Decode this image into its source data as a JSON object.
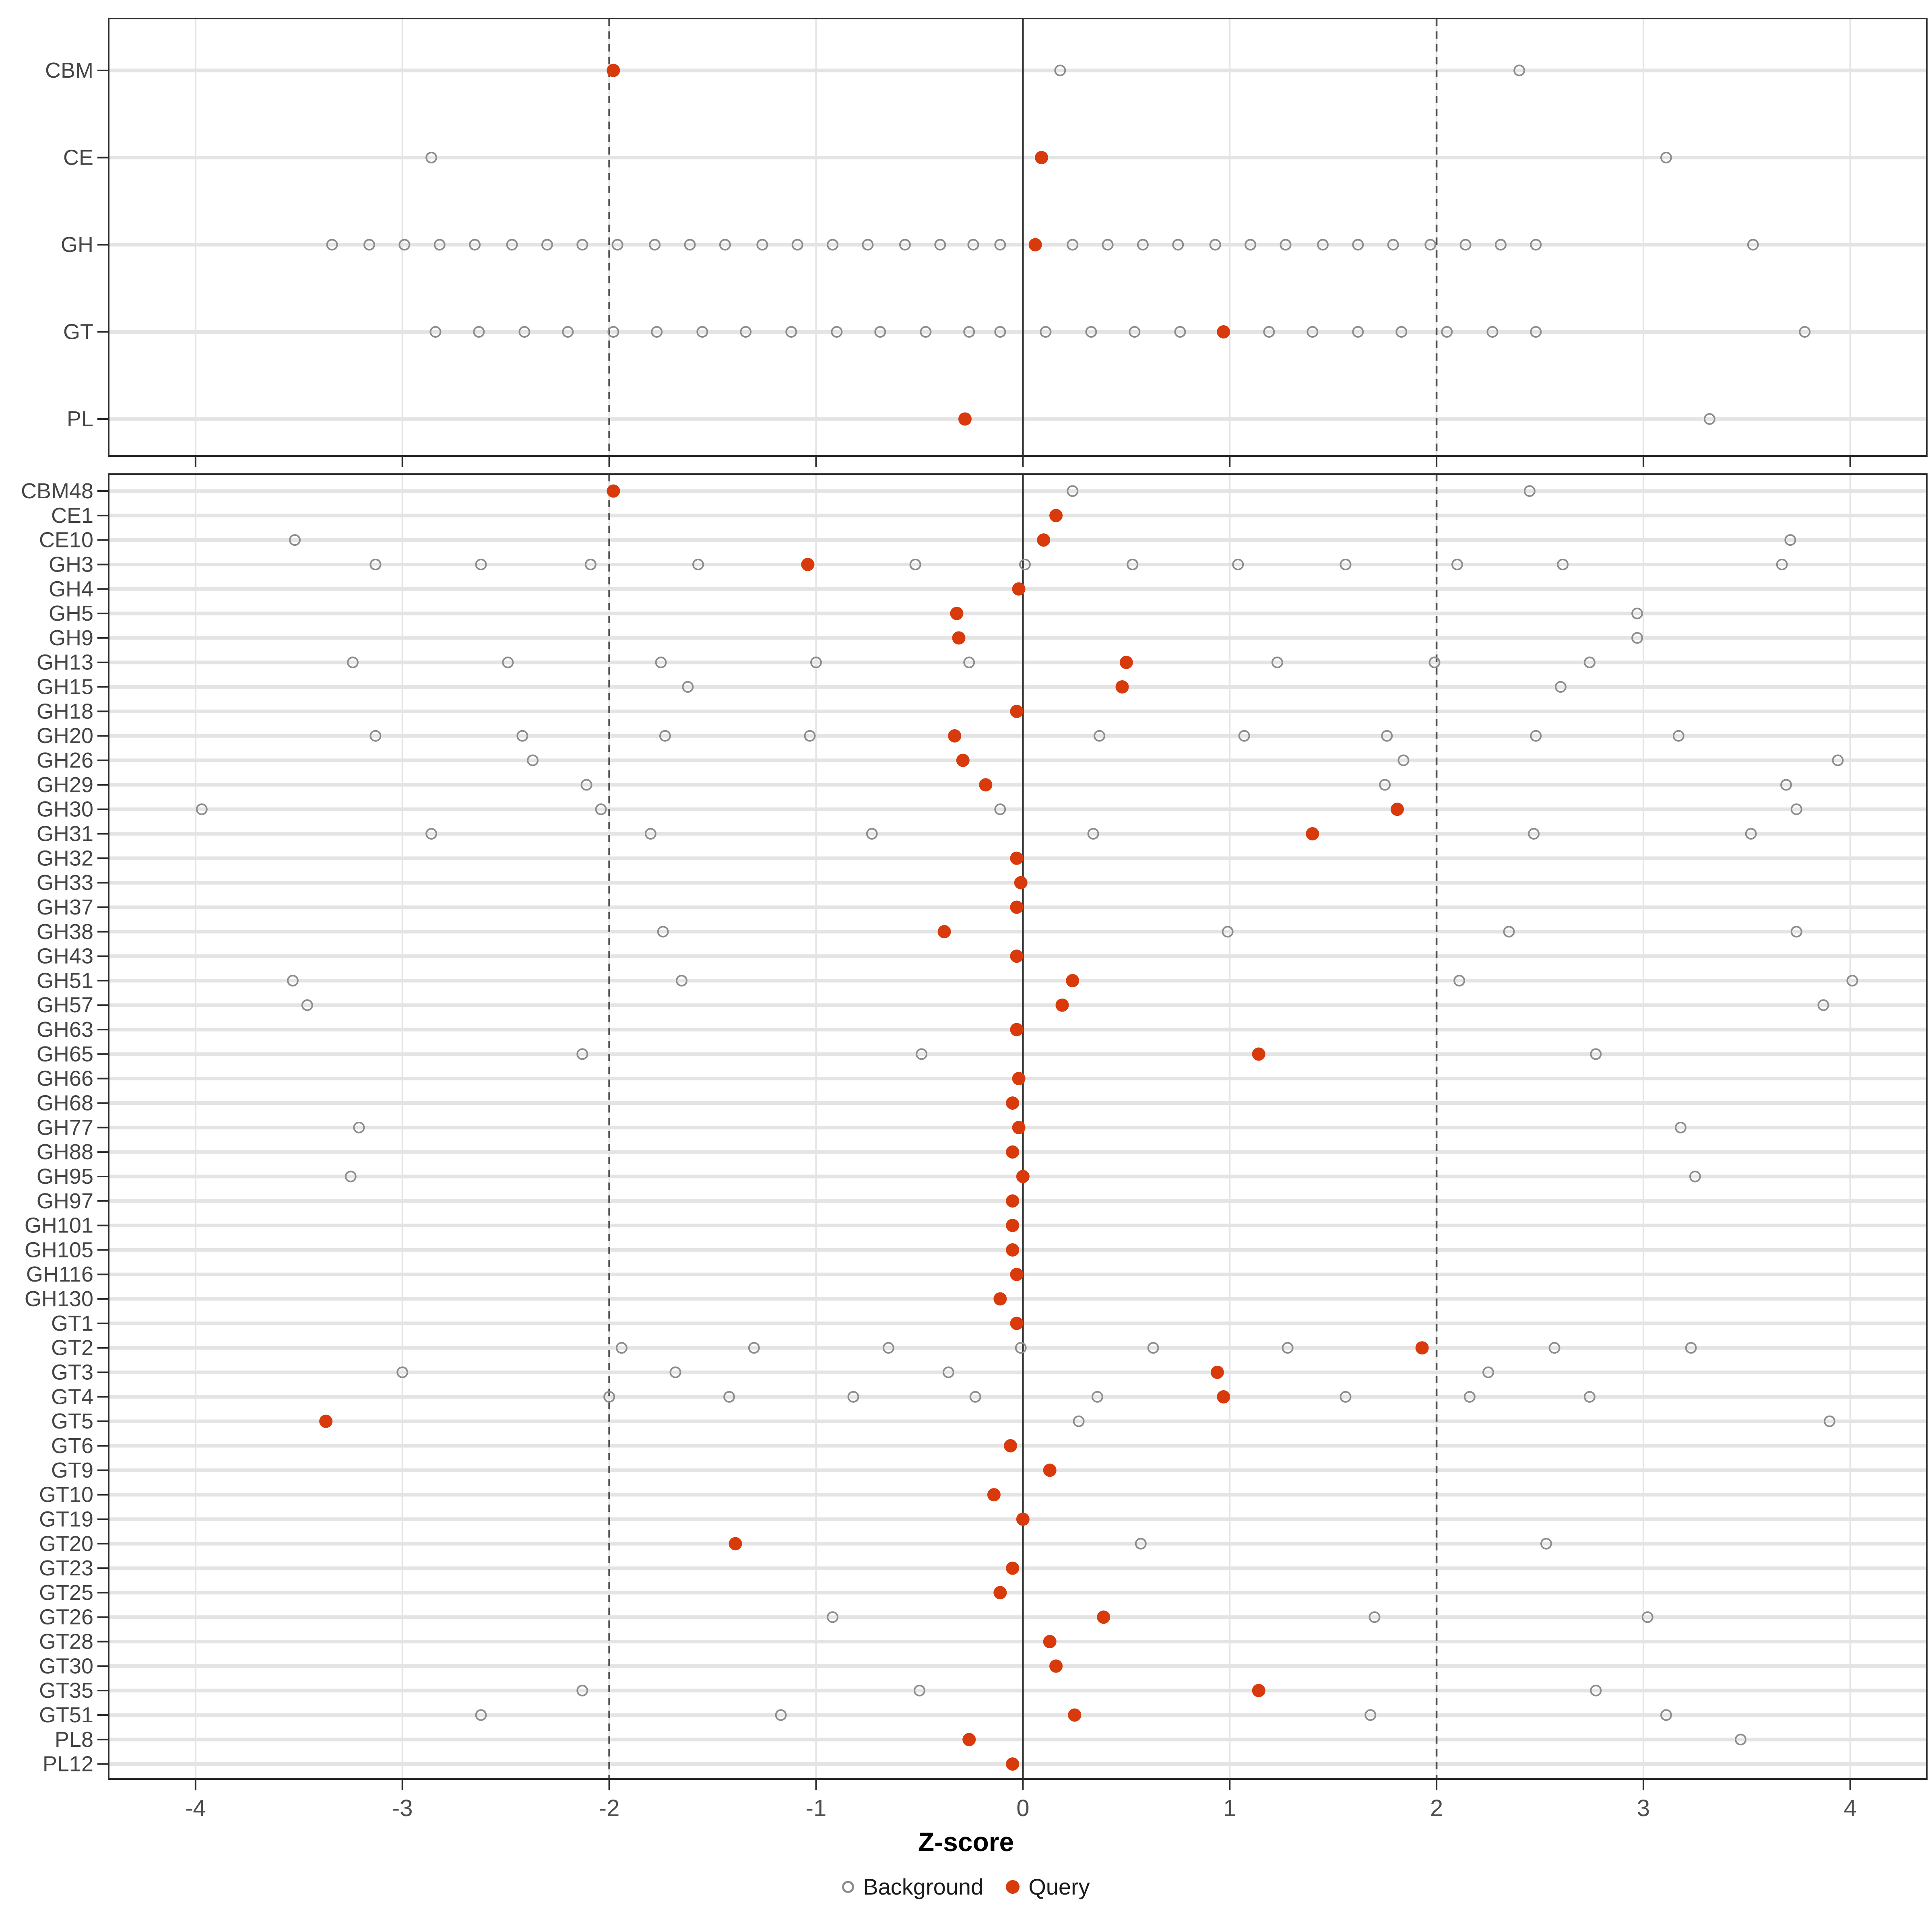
{
  "axis": {
    "label": "Z-score",
    "ticks": [
      -4,
      -3,
      -2,
      -1,
      0,
      1,
      2,
      3,
      4
    ],
    "range": [
      -4.42,
      4.37
    ]
  },
  "legend": {
    "background_label": "Background",
    "query_label": "Query"
  },
  "reference_lines": {
    "zero": 0,
    "dashed": [
      -2,
      2
    ]
  },
  "colors": {
    "query": "#D93A0C",
    "background_stroke": "#8C8C8C",
    "grid": "#E4E4E4",
    "zero_line": "#333333",
    "dashed_line": "#4D4D4D",
    "panel_border": "#2B2B2B",
    "axis_text": "#4D4D4D",
    "label_text": "#444444"
  },
  "chart_data": {
    "type": "scatter",
    "xlabel": "Z-score",
    "xlim": [
      -4.42,
      4.37
    ],
    "series_names": [
      "Background",
      "Query"
    ],
    "panels": [
      {
        "name": "top",
        "rows": [
          {
            "label": "CBM",
            "query": -1.98,
            "background": [
              0.18,
              2.4
            ]
          },
          {
            "label": "CE",
            "query": 0.09,
            "background": [
              -2.86,
              3.11
            ]
          },
          {
            "label": "GH",
            "query": 0.06,
            "background": [
              -3.34,
              -3.16,
              -2.99,
              -2.82,
              -2.65,
              -2.47,
              -2.3,
              -2.13,
              -1.96,
              -1.78,
              -1.61,
              -1.44,
              -1.26,
              -1.09,
              -0.92,
              -0.75,
              -0.57,
              -0.4,
              -0.24,
              -0.11,
              0.24,
              0.41,
              0.58,
              0.75,
              0.93,
              1.1,
              1.27,
              1.45,
              1.62,
              1.79,
              1.97,
              2.14,
              2.31,
              2.48,
              3.53
            ]
          },
          {
            "label": "GT",
            "query": 0.97,
            "background": [
              -2.84,
              -2.63,
              -2.41,
              -2.2,
              -1.98,
              -1.77,
              -1.55,
              -1.34,
              -1.12,
              -0.9,
              -0.69,
              -0.47,
              -0.26,
              -0.11,
              0.11,
              0.33,
              0.54,
              0.76,
              1.19,
              1.4,
              1.62,
              1.83,
              2.05,
              2.27,
              2.48,
              3.78
            ]
          },
          {
            "label": "PL",
            "query": -0.28,
            "background": [
              3.32
            ]
          }
        ]
      },
      {
        "name": "bottom",
        "rows": [
          {
            "label": "CBM48",
            "query": -1.98,
            "background": [
              0.24,
              2.45
            ]
          },
          {
            "label": "CE1",
            "query": 0.16,
            "background": []
          },
          {
            "label": "CE10",
            "query": 0.1,
            "background": [
              -3.52,
              3.71
            ]
          },
          {
            "label": "GH3",
            "query": -1.04,
            "background": [
              -3.13,
              -2.62,
              -2.09,
              -1.57,
              -0.52,
              0.01,
              0.53,
              1.04,
              1.56,
              2.1,
              2.61,
              3.67
            ]
          },
          {
            "label": "GH4",
            "query": -0.02,
            "background": []
          },
          {
            "label": "GH5",
            "query": -0.32,
            "background": [
              2.97
            ]
          },
          {
            "label": "GH9",
            "query": -0.31,
            "background": [
              2.97
            ]
          },
          {
            "label": "GH13",
            "query": 0.5,
            "background": [
              -3.24,
              -2.49,
              -1.75,
              -1.0,
              -0.26,
              1.23,
              1.99,
              2.74
            ]
          },
          {
            "label": "GH15",
            "query": 0.48,
            "background": [
              -1.62,
              2.6
            ]
          },
          {
            "label": "GH18",
            "query": -0.03,
            "background": []
          },
          {
            "label": "GH20",
            "query": -0.33,
            "background": [
              -3.13,
              -2.42,
              -1.73,
              -1.03,
              0.37,
              1.07,
              1.76,
              2.48,
              3.17
            ]
          },
          {
            "label": "GH26",
            "query": -0.29,
            "background": [
              -2.37,
              1.84,
              3.94
            ]
          },
          {
            "label": "GH29",
            "query": -0.18,
            "background": [
              -2.11,
              1.75,
              3.69
            ]
          },
          {
            "label": "GH30",
            "query": 1.81,
            "background": [
              -3.97,
              -2.04,
              -0.11,
              3.74
            ]
          },
          {
            "label": "GH31",
            "query": 1.4,
            "background": [
              -2.86,
              -1.8,
              -0.73,
              0.34,
              2.47,
              3.52
            ]
          },
          {
            "label": "GH32",
            "query": -0.03,
            "background": []
          },
          {
            "label": "GH33",
            "query": -0.01,
            "background": []
          },
          {
            "label": "GH37",
            "query": -0.03,
            "background": []
          },
          {
            "label": "GH38",
            "query": -0.38,
            "background": [
              -1.74,
              0.99,
              2.35,
              3.74
            ]
          },
          {
            "label": "GH43",
            "query": -0.03,
            "background": []
          },
          {
            "label": "GH51",
            "query": 0.24,
            "background": [
              -3.53,
              -1.65,
              2.11,
              4.01
            ]
          },
          {
            "label": "GH57",
            "query": 0.19,
            "background": [
              -3.46,
              3.87
            ]
          },
          {
            "label": "GH63",
            "query": -0.03,
            "background": []
          },
          {
            "label": "GH65",
            "query": 1.14,
            "background": [
              -2.13,
              -0.49,
              2.77
            ]
          },
          {
            "label": "GH66",
            "query": -0.02,
            "background": []
          },
          {
            "label": "GH68",
            "query": -0.05,
            "background": []
          },
          {
            "label": "GH77",
            "query": -0.02,
            "background": [
              -3.21,
              3.18
            ]
          },
          {
            "label": "GH88",
            "query": -0.05,
            "background": []
          },
          {
            "label": "GH95",
            "query": 0.0,
            "background": [
              -3.25,
              3.25
            ]
          },
          {
            "label": "GH97",
            "query": -0.05,
            "background": []
          },
          {
            "label": "GH101",
            "query": -0.05,
            "background": []
          },
          {
            "label": "GH105",
            "query": -0.05,
            "background": []
          },
          {
            "label": "GH116",
            "query": -0.03,
            "background": []
          },
          {
            "label": "GH130",
            "query": -0.11,
            "background": []
          },
          {
            "label": "GT1",
            "query": -0.03,
            "background": []
          },
          {
            "label": "GT2",
            "query": 1.93,
            "background": [
              -1.94,
              -1.3,
              -0.65,
              -0.01,
              0.63,
              1.28,
              2.57,
              3.23
            ]
          },
          {
            "label": "GT3",
            "query": 0.94,
            "background": [
              -3.0,
              -1.68,
              -0.36,
              2.25
            ]
          },
          {
            "label": "GT4",
            "query": 0.97,
            "background": [
              -2.0,
              -1.42,
              -0.82,
              -0.23,
              0.36,
              1.56,
              2.16,
              2.74
            ]
          },
          {
            "label": "GT5",
            "query": -3.37,
            "background": [
              0.27,
              3.9
            ]
          },
          {
            "label": "GT6",
            "query": -0.06,
            "background": []
          },
          {
            "label": "GT9",
            "query": 0.13,
            "background": []
          },
          {
            "label": "GT10",
            "query": -0.14,
            "background": []
          },
          {
            "label": "GT19",
            "query": 0.0,
            "background": []
          },
          {
            "label": "GT20",
            "query": -1.39,
            "background": [
              0.57,
              2.53
            ]
          },
          {
            "label": "GT23",
            "query": -0.05,
            "background": []
          },
          {
            "label": "GT25",
            "query": -0.11,
            "background": []
          },
          {
            "label": "GT26",
            "query": 0.39,
            "background": [
              -0.92,
              1.7,
              3.02
            ]
          },
          {
            "label": "GT28",
            "query": 0.13,
            "background": []
          },
          {
            "label": "GT30",
            "query": 0.16,
            "background": []
          },
          {
            "label": "GT35",
            "query": 1.14,
            "background": [
              -2.13,
              -0.5,
              2.77
            ]
          },
          {
            "label": "GT51",
            "query": 0.25,
            "background": [
              -2.62,
              -1.17,
              1.68,
              3.11
            ]
          },
          {
            "label": "PL8",
            "query": -0.26,
            "background": [
              3.47
            ]
          },
          {
            "label": "PL12",
            "query": -0.05,
            "background": []
          }
        ]
      }
    ]
  }
}
